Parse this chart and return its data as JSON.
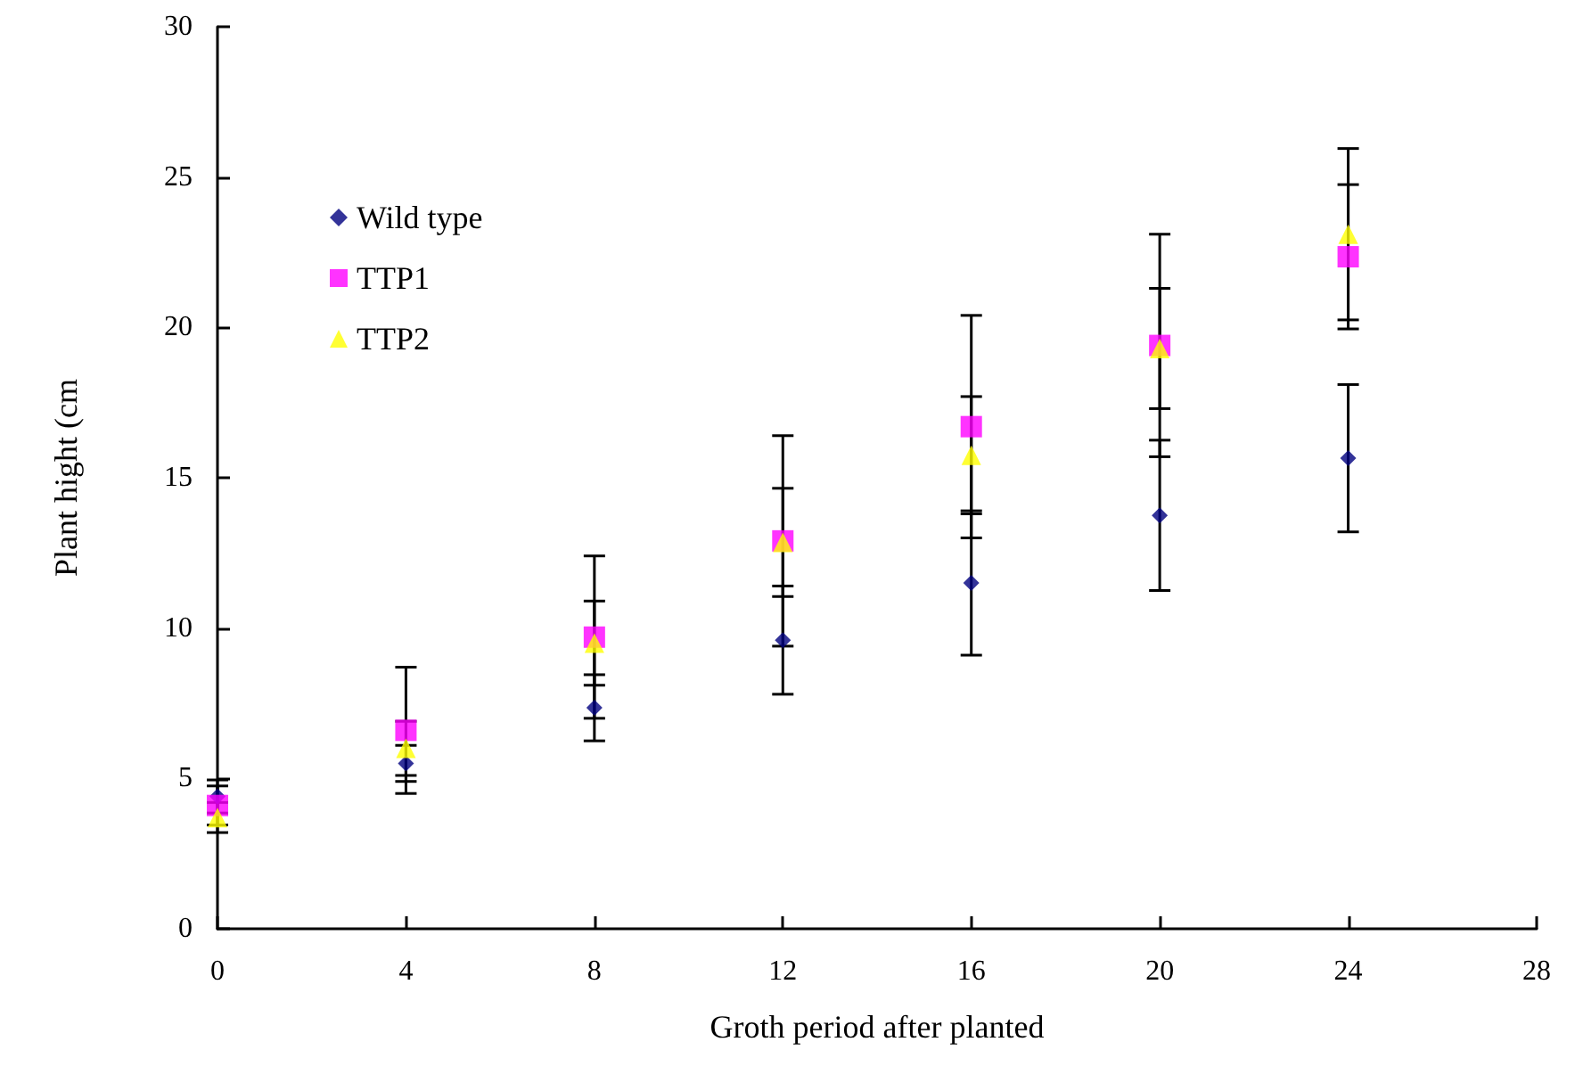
{
  "chart_data": {
    "type": "scatter",
    "xlabel": "Groth period after planted",
    "ylabel": "Plant hight (cm",
    "x": [
      0,
      4,
      8,
      12,
      16,
      20,
      24
    ],
    "xlim": [
      0,
      28
    ],
    "xticks": [
      0,
      4,
      8,
      12,
      16,
      20,
      24,
      28
    ],
    "ylim": [
      0,
      30
    ],
    "yticks": [
      0,
      5,
      10,
      15,
      20,
      25,
      30
    ],
    "grid": false,
    "legend": "top left",
    "series": [
      {
        "name": "Wild type",
        "color": "#000080",
        "marker": "diamond",
        "values": [
          4.4,
          5.5,
          7.35,
          9.6,
          11.5,
          13.75,
          15.65
        ],
        "errors": [
          0.55,
          0.6,
          1.1,
          1.8,
          2.4,
          2.5,
          2.45
        ]
      },
      {
        "name": "TTP1",
        "color": "#ff00ff",
        "marker": "square",
        "values": [
          4.1,
          6.6,
          9.7,
          12.9,
          16.7,
          19.4,
          22.35
        ],
        "errors": [
          0.65,
          2.1,
          2.7,
          3.5,
          3.7,
          3.7,
          2.4
        ]
      },
      {
        "name": "TTP2",
        "color": "#ffff00",
        "marker": "triangle",
        "values": [
          3.7,
          6.0,
          9.5,
          12.85,
          15.75,
          19.3,
          23.1
        ],
        "errors": [
          0.5,
          0.9,
          1.4,
          1.8,
          1.95,
          2.0,
          2.85
        ]
      }
    ]
  }
}
